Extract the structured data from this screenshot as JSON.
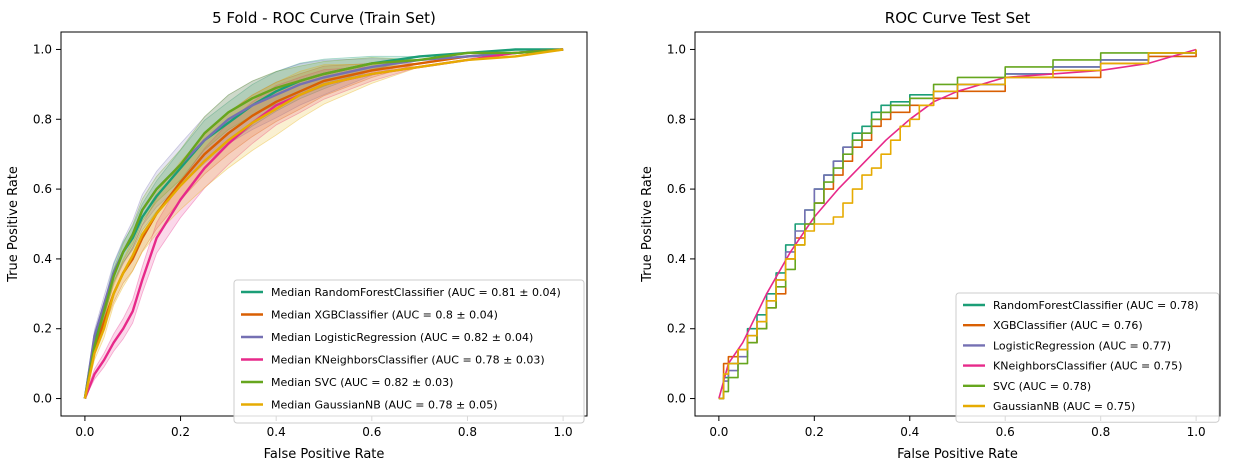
{
  "chart_data": [
    {
      "type": "line",
      "title": "5 Fold - ROC Curve (Train Set)",
      "xlabel": "False Positive Rate",
      "ylabel": "True Positive Rate",
      "xlim": [
        -0.05,
        1.05
      ],
      "ylim": [
        -0.05,
        1.05
      ],
      "xticks": [
        "0.0",
        "0.2",
        "0.4",
        "0.6",
        "0.8",
        "1.0"
      ],
      "yticks": [
        "0.0",
        "0.2",
        "0.4",
        "0.6",
        "0.8",
        "1.0"
      ],
      "grid": false,
      "legend_position": "lower-right",
      "series": [
        {
          "label": "Median RandomForestClassifier (AUC = 0.81 ± 0.04)",
          "color": "#1b9e77",
          "x": [
            0,
            0.02,
            0.04,
            0.06,
            0.08,
            0.1,
            0.12,
            0.15,
            0.2,
            0.25,
            0.3,
            0.35,
            0.4,
            0.45,
            0.5,
            0.6,
            0.7,
            0.8,
            0.9,
            1.0
          ],
          "y": [
            0,
            0.17,
            0.25,
            0.36,
            0.42,
            0.46,
            0.52,
            0.58,
            0.66,
            0.74,
            0.79,
            0.84,
            0.88,
            0.91,
            0.93,
            0.96,
            0.98,
            0.99,
            1.0,
            1.0
          ],
          "band": 0.06
        },
        {
          "label": "Median XGBClassifier (AUC = 0.8 ± 0.04)",
          "color": "#d95f02",
          "x": [
            0,
            0.02,
            0.04,
            0.06,
            0.08,
            0.1,
            0.12,
            0.15,
            0.2,
            0.25,
            0.3,
            0.35,
            0.4,
            0.45,
            0.5,
            0.6,
            0.7,
            0.8,
            0.9,
            1.0
          ],
          "y": [
            0,
            0.14,
            0.22,
            0.3,
            0.36,
            0.4,
            0.46,
            0.53,
            0.62,
            0.7,
            0.76,
            0.81,
            0.85,
            0.88,
            0.91,
            0.94,
            0.96,
            0.98,
            0.99,
            1.0
          ],
          "band": 0.06
        },
        {
          "label": "Median LogisticRegression (AUC = 0.82 ± 0.04)",
          "color": "#7570b3",
          "x": [
            0,
            0.02,
            0.04,
            0.06,
            0.08,
            0.1,
            0.12,
            0.15,
            0.2,
            0.25,
            0.3,
            0.35,
            0.4,
            0.45,
            0.5,
            0.6,
            0.7,
            0.8,
            0.9,
            1.0
          ],
          "y": [
            0,
            0.18,
            0.27,
            0.36,
            0.42,
            0.47,
            0.54,
            0.6,
            0.67,
            0.74,
            0.8,
            0.84,
            0.87,
            0.9,
            0.92,
            0.95,
            0.97,
            0.98,
            0.99,
            1.0
          ],
          "band": 0.07
        },
        {
          "label": "Median KNeighborsClassifier (AUC = 0.78 ± 0.03)",
          "color": "#e7298a",
          "x": [
            0,
            0.02,
            0.04,
            0.06,
            0.08,
            0.1,
            0.12,
            0.15,
            0.2,
            0.25,
            0.3,
            0.35,
            0.4,
            0.45,
            0.5,
            0.6,
            0.7,
            0.8,
            0.9,
            1.0
          ],
          "y": [
            0,
            0.07,
            0.11,
            0.16,
            0.2,
            0.25,
            0.34,
            0.46,
            0.57,
            0.66,
            0.73,
            0.79,
            0.84,
            0.87,
            0.9,
            0.93,
            0.95,
            0.97,
            0.99,
            1.0
          ],
          "band": 0.06
        },
        {
          "label": "Median SVC (AUC = 0.82 ± 0.03)",
          "color": "#66a61e",
          "x": [
            0,
            0.02,
            0.04,
            0.06,
            0.08,
            0.1,
            0.12,
            0.15,
            0.2,
            0.25,
            0.3,
            0.35,
            0.4,
            0.45,
            0.5,
            0.6,
            0.7,
            0.8,
            0.9,
            1.0
          ],
          "y": [
            0,
            0.15,
            0.25,
            0.35,
            0.42,
            0.47,
            0.54,
            0.6,
            0.67,
            0.76,
            0.82,
            0.86,
            0.89,
            0.91,
            0.93,
            0.96,
            0.97,
            0.99,
            0.99,
            1.0
          ],
          "band": 0.05
        },
        {
          "label": "Median GaussianNB (AUC = 0.78 ± 0.05)",
          "color": "#e6ab02",
          "x": [
            0,
            0.02,
            0.04,
            0.06,
            0.08,
            0.1,
            0.12,
            0.15,
            0.2,
            0.25,
            0.3,
            0.35,
            0.4,
            0.45,
            0.5,
            0.6,
            0.7,
            0.8,
            0.9,
            1.0
          ],
          "y": [
            0,
            0.13,
            0.2,
            0.3,
            0.36,
            0.41,
            0.47,
            0.53,
            0.61,
            0.68,
            0.74,
            0.79,
            0.83,
            0.87,
            0.9,
            0.93,
            0.95,
            0.97,
            0.98,
            1.0
          ],
          "band": 0.08
        }
      ]
    },
    {
      "type": "line",
      "title": "ROC Curve Test Set",
      "xlabel": "False Positive Rate",
      "ylabel": "True Positive Rate",
      "xlim": [
        -0.05,
        1.05
      ],
      "ylim": [
        -0.05,
        1.05
      ],
      "xticks": [
        "0.0",
        "0.2",
        "0.4",
        "0.6",
        "0.8",
        "1.0"
      ],
      "yticks": [
        "0.0",
        "0.2",
        "0.4",
        "0.6",
        "0.8",
        "1.0"
      ],
      "grid": false,
      "legend_position": "lower-right",
      "series": [
        {
          "label": "RandomForestClassifier (AUC = 0.78)",
          "color": "#1b9e77",
          "x": [
            0,
            0.01,
            0.02,
            0.04,
            0.06,
            0.08,
            0.1,
            0.12,
            0.14,
            0.16,
            0.18,
            0.2,
            0.22,
            0.24,
            0.26,
            0.28,
            0.3,
            0.32,
            0.34,
            0.36,
            0.4,
            0.45,
            0.5,
            0.6,
            0.7,
            0.8,
            0.9,
            1.0
          ],
          "y": [
            0,
            0.06,
            0.1,
            0.14,
            0.2,
            0.24,
            0.3,
            0.36,
            0.44,
            0.5,
            0.54,
            0.6,
            0.64,
            0.68,
            0.72,
            0.76,
            0.78,
            0.82,
            0.84,
            0.85,
            0.87,
            0.88,
            0.9,
            0.93,
            0.95,
            0.97,
            0.99,
            1.0
          ],
          "step": true
        },
        {
          "label": "XGBClassifier (AUC = 0.76)",
          "color": "#d95f02",
          "x": [
            0,
            0.01,
            0.02,
            0.04,
            0.06,
            0.08,
            0.1,
            0.12,
            0.14,
            0.16,
            0.18,
            0.2,
            0.22,
            0.24,
            0.26,
            0.28,
            0.3,
            0.32,
            0.34,
            0.36,
            0.4,
            0.45,
            0.5,
            0.6,
            0.7,
            0.8,
            0.9,
            1.0
          ],
          "y": [
            0,
            0.1,
            0.12,
            0.14,
            0.16,
            0.2,
            0.26,
            0.3,
            0.4,
            0.46,
            0.5,
            0.56,
            0.6,
            0.64,
            0.68,
            0.72,
            0.74,
            0.78,
            0.8,
            0.82,
            0.84,
            0.86,
            0.88,
            0.92,
            0.92,
            0.96,
            0.98,
            1.0
          ],
          "step": true
        },
        {
          "label": "LogisticRegression (AUC = 0.77)",
          "color": "#7570b3",
          "x": [
            0,
            0.01,
            0.02,
            0.04,
            0.06,
            0.08,
            0.1,
            0.12,
            0.14,
            0.16,
            0.18,
            0.2,
            0.22,
            0.24,
            0.26,
            0.28,
            0.3,
            0.32,
            0.34,
            0.36,
            0.4,
            0.45,
            0.5,
            0.6,
            0.7,
            0.8,
            0.9,
            1.0
          ],
          "y": [
            0,
            0.05,
            0.08,
            0.12,
            0.18,
            0.22,
            0.28,
            0.34,
            0.42,
            0.48,
            0.54,
            0.6,
            0.64,
            0.68,
            0.72,
            0.74,
            0.76,
            0.8,
            0.82,
            0.84,
            0.86,
            0.88,
            0.9,
            0.93,
            0.95,
            0.97,
            0.99,
            1.0
          ],
          "step": true
        },
        {
          "label": "KNeighborsClassifier (AUC = 0.75)",
          "color": "#e7298a",
          "x": [
            0,
            0.02,
            0.05,
            0.1,
            0.15,
            0.2,
            0.25,
            0.3,
            0.35,
            0.4,
            0.45,
            0.5,
            0.55,
            0.6,
            0.7,
            0.8,
            0.9,
            0.95,
            1.0
          ],
          "y": [
            0,
            0.1,
            0.16,
            0.3,
            0.42,
            0.52,
            0.6,
            0.67,
            0.74,
            0.8,
            0.85,
            0.88,
            0.9,
            0.92,
            0.93,
            0.94,
            0.96,
            0.98,
            1.0
          ],
          "step": false
        },
        {
          "label": "SVC (AUC = 0.78)",
          "color": "#66a61e",
          "x": [
            0,
            0.01,
            0.02,
            0.04,
            0.06,
            0.08,
            0.1,
            0.12,
            0.14,
            0.16,
            0.18,
            0.2,
            0.22,
            0.24,
            0.26,
            0.28,
            0.3,
            0.32,
            0.34,
            0.36,
            0.4,
            0.45,
            0.5,
            0.6,
            0.7,
            0.8,
            0.9,
            1.0
          ],
          "y": [
            0,
            0.02,
            0.06,
            0.1,
            0.16,
            0.2,
            0.26,
            0.32,
            0.37,
            0.44,
            0.5,
            0.56,
            0.62,
            0.66,
            0.7,
            0.74,
            0.76,
            0.8,
            0.82,
            0.84,
            0.86,
            0.9,
            0.92,
            0.95,
            0.97,
            0.99,
            0.99,
            1.0
          ],
          "step": true
        },
        {
          "label": "GaussianNB (AUC = 0.75)",
          "color": "#e6ab02",
          "x": [
            0,
            0.01,
            0.02,
            0.04,
            0.06,
            0.08,
            0.1,
            0.12,
            0.14,
            0.16,
            0.18,
            0.2,
            0.22,
            0.24,
            0.26,
            0.28,
            0.3,
            0.32,
            0.34,
            0.36,
            0.38,
            0.4,
            0.42,
            0.45,
            0.5,
            0.6,
            0.7,
            0.8,
            0.9,
            1.0
          ],
          "y": [
            0,
            0.07,
            0.1,
            0.14,
            0.18,
            0.22,
            0.28,
            0.34,
            0.4,
            0.44,
            0.48,
            0.5,
            0.5,
            0.52,
            0.56,
            0.6,
            0.64,
            0.66,
            0.7,
            0.74,
            0.78,
            0.8,
            0.84,
            0.88,
            0.9,
            0.92,
            0.94,
            0.96,
            0.99,
            1.0
          ],
          "step": true
        }
      ]
    }
  ]
}
